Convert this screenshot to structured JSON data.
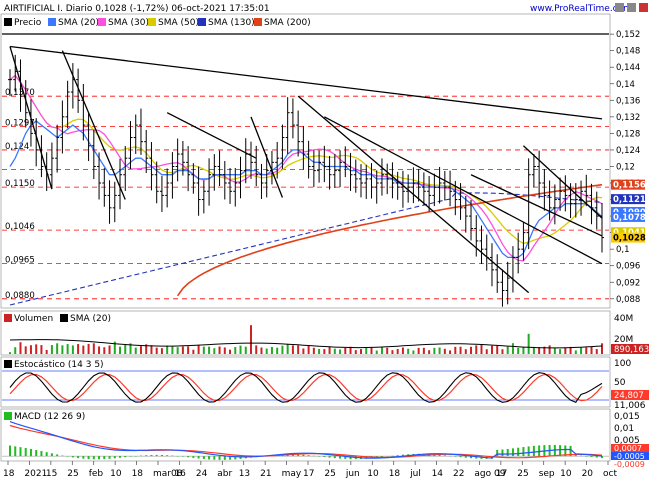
{
  "header": {
    "title": "AIRTIFICIAL I. Diario 0,1028 (-1,72%) 06-oct-2021 17:35:01",
    "brand": "www.ProRealTime.com"
  },
  "colors": {
    "price": "#000000",
    "sma20": "#3b78ff",
    "sma30": "#ff4fe0",
    "sma50": "#d8cc00",
    "sma130": "#2233bb",
    "sma200": "#e0411a",
    "hline": "#ff0000",
    "trend": "#000000",
    "axis_bg": "#ffffff",
    "volume": "#cc2222",
    "stoch_k": "#000000",
    "stoch_d": "#ff3a2a",
    "macd_hist": "#22bb22",
    "macd_line": "#2255ff",
    "macd_signal": "#ff3a2a"
  },
  "price_panel": {
    "legend": [
      "Precio",
      "SMA (20)",
      "SMA (30)",
      "SMA (50)",
      "SMA (130)",
      "SMA (200)"
    ],
    "axis_ticks": [
      "0,152",
      "0,148",
      "0,144",
      "0,14",
      "0,136",
      "0,132",
      "0,128",
      "0,124",
      "0,12",
      "0,116",
      "0,112",
      "0,108",
      "0,104",
      "0,1",
      "0,096",
      "0,092",
      "0,088"
    ],
    "level_labels": [
      "0,1370",
      "0,1297",
      "0,124",
      "0,1150",
      "0,1046",
      "0,0965",
      "0,0880"
    ],
    "value_tags": [
      {
        "text": "0,1156",
        "bg": "#e0411a",
        "fg": "#ffffff"
      },
      {
        "text": "0,1121",
        "bg": "#2233bb",
        "fg": "#ffffff"
      },
      {
        "text": "0,1090",
        "bg": "#3b78ff",
        "fg": "#ffffff"
      },
      {
        "text": "0,1078",
        "bg": "#3b78ff",
        "fg": "#ffffff"
      },
      {
        "text": "0,1041",
        "bg": "#d8cc00",
        "fg": "#ffffff"
      },
      {
        "text": "0,1028",
        "bg": "#ffcc00",
        "fg": "#000000"
      }
    ]
  },
  "volume_panel": {
    "legend": [
      "Volumen",
      "SMA (20)"
    ],
    "axis_ticks": [
      "40M",
      "20M"
    ],
    "value_tag": "890,163"
  },
  "stoch_panel": {
    "legend": "Estocástico (14 3 5)",
    "axis_ticks": [
      "100",
      "50",
      "0"
    ],
    "value_tags": [
      "24,807",
      "11,006"
    ]
  },
  "macd_panel": {
    "legend": "MACD (12 26 9)",
    "axis_ticks": [
      "0,015",
      "0,01",
      "0,005",
      "0"
    ],
    "value_tags": [
      "0,0007",
      "-0,0005",
      "-0,0009"
    ]
  },
  "x_axis": {
    "labels": [
      "18",
      "2021",
      "15",
      "25",
      "feb",
      "10",
      "18",
      "mar08",
      "16",
      "24",
      "abr",
      "13",
      "21",
      "may",
      "17",
      "25",
      "jun",
      "10",
      "18",
      "jul",
      "14",
      "22",
      "ago 09",
      "17",
      "25",
      "sep",
      "10",
      "20",
      "oct"
    ]
  },
  "chart_data": {
    "type": "line",
    "title": "AIRTIFICIAL I. Diario 0,1028 (-1,72%) 06-oct-2021 17:35:01",
    "price_range": [
      0.0865,
      0.153
    ],
    "horizontal_levels": [
      0.137,
      0.1297,
      0.124,
      0.1193,
      0.115,
      0.1046,
      0.0965,
      0.088
    ],
    "close": [
      0.141,
      0.143,
      0.137,
      0.133,
      0.128,
      0.124,
      0.12,
      0.118,
      0.122,
      0.127,
      0.132,
      0.138,
      0.141,
      0.136,
      0.13,
      0.125,
      0.12,
      0.116,
      0.113,
      0.11,
      0.113,
      0.118,
      0.122,
      0.127,
      0.13,
      0.126,
      0.122,
      0.118,
      0.114,
      0.113,
      0.116,
      0.12,
      0.123,
      0.121,
      0.118,
      0.116,
      0.112,
      0.114,
      0.118,
      0.12,
      0.118,
      0.116,
      0.114,
      0.116,
      0.119,
      0.123,
      0.121,
      0.118,
      0.116,
      0.119,
      0.121,
      0.122,
      0.127,
      0.133,
      0.13,
      0.126,
      0.123,
      0.12,
      0.119,
      0.121,
      0.12,
      0.118,
      0.119,
      0.121,
      0.12,
      0.118,
      0.117,
      0.116,
      0.117,
      0.115,
      0.116,
      0.118,
      0.117,
      0.116,
      0.115,
      0.114,
      0.115,
      0.116,
      0.115,
      0.114,
      0.113,
      0.115,
      0.116,
      0.115,
      0.114,
      0.112,
      0.11,
      0.108,
      0.105,
      0.102,
      0.1,
      0.098,
      0.095,
      0.092,
      0.09,
      0.093,
      0.098,
      0.1,
      0.104,
      0.118,
      0.12,
      0.116,
      0.113,
      0.11,
      0.112,
      0.114,
      0.113,
      0.111,
      0.112,
      0.114,
      0.113,
      0.11,
      0.108,
      0.1028
    ],
    "sma20": [
      0.12,
      0.122,
      0.125,
      0.128,
      0.13,
      0.131,
      0.13,
      0.129,
      0.128,
      0.127,
      0.128,
      0.129,
      0.13,
      0.129,
      0.128,
      0.126,
      0.124,
      0.122,
      0.12,
      0.118,
      0.118,
      0.119,
      0.12,
      0.121,
      0.122,
      0.122,
      0.121,
      0.12,
      0.119,
      0.118,
      0.118,
      0.118,
      0.119,
      0.119,
      0.119,
      0.118,
      0.117,
      0.117,
      0.117,
      0.118,
      0.118,
      0.118,
      0.118,
      0.118,
      0.118,
      0.119,
      0.119,
      0.119,
      0.118,
      0.118,
      0.119,
      0.12,
      0.121,
      0.123,
      0.124,
      0.124,
      0.123,
      0.122,
      0.121,
      0.121,
      0.12,
      0.12,
      0.12,
      0.12,
      0.12,
      0.119,
      0.119,
      0.118,
      0.118,
      0.118,
      0.117,
      0.117,
      0.117,
      0.117,
      0.116,
      0.116,
      0.116,
      0.116,
      0.116,
      0.115,
      0.115,
      0.115,
      0.115,
      0.115,
      0.115,
      0.114,
      0.113,
      0.112,
      0.111,
      0.109,
      0.107,
      0.105,
      0.103,
      0.101,
      0.099,
      0.098,
      0.098,
      0.098,
      0.099,
      0.102,
      0.105,
      0.107,
      0.108,
      0.109,
      0.11,
      0.11,
      0.111,
      0.111,
      0.111,
      0.111,
      0.111,
      0.11,
      0.109,
      0.1078
    ],
    "sma200_end": 0.1156,
    "sma130_end": 0.1121,
    "sma50_end": 0.1041,
    "volume_ylim": [
      0,
      40000000
    ],
    "stoch_ylim": [
      0,
      100
    ],
    "macd_ylim": [
      -0.001,
      0.015
    ]
  }
}
